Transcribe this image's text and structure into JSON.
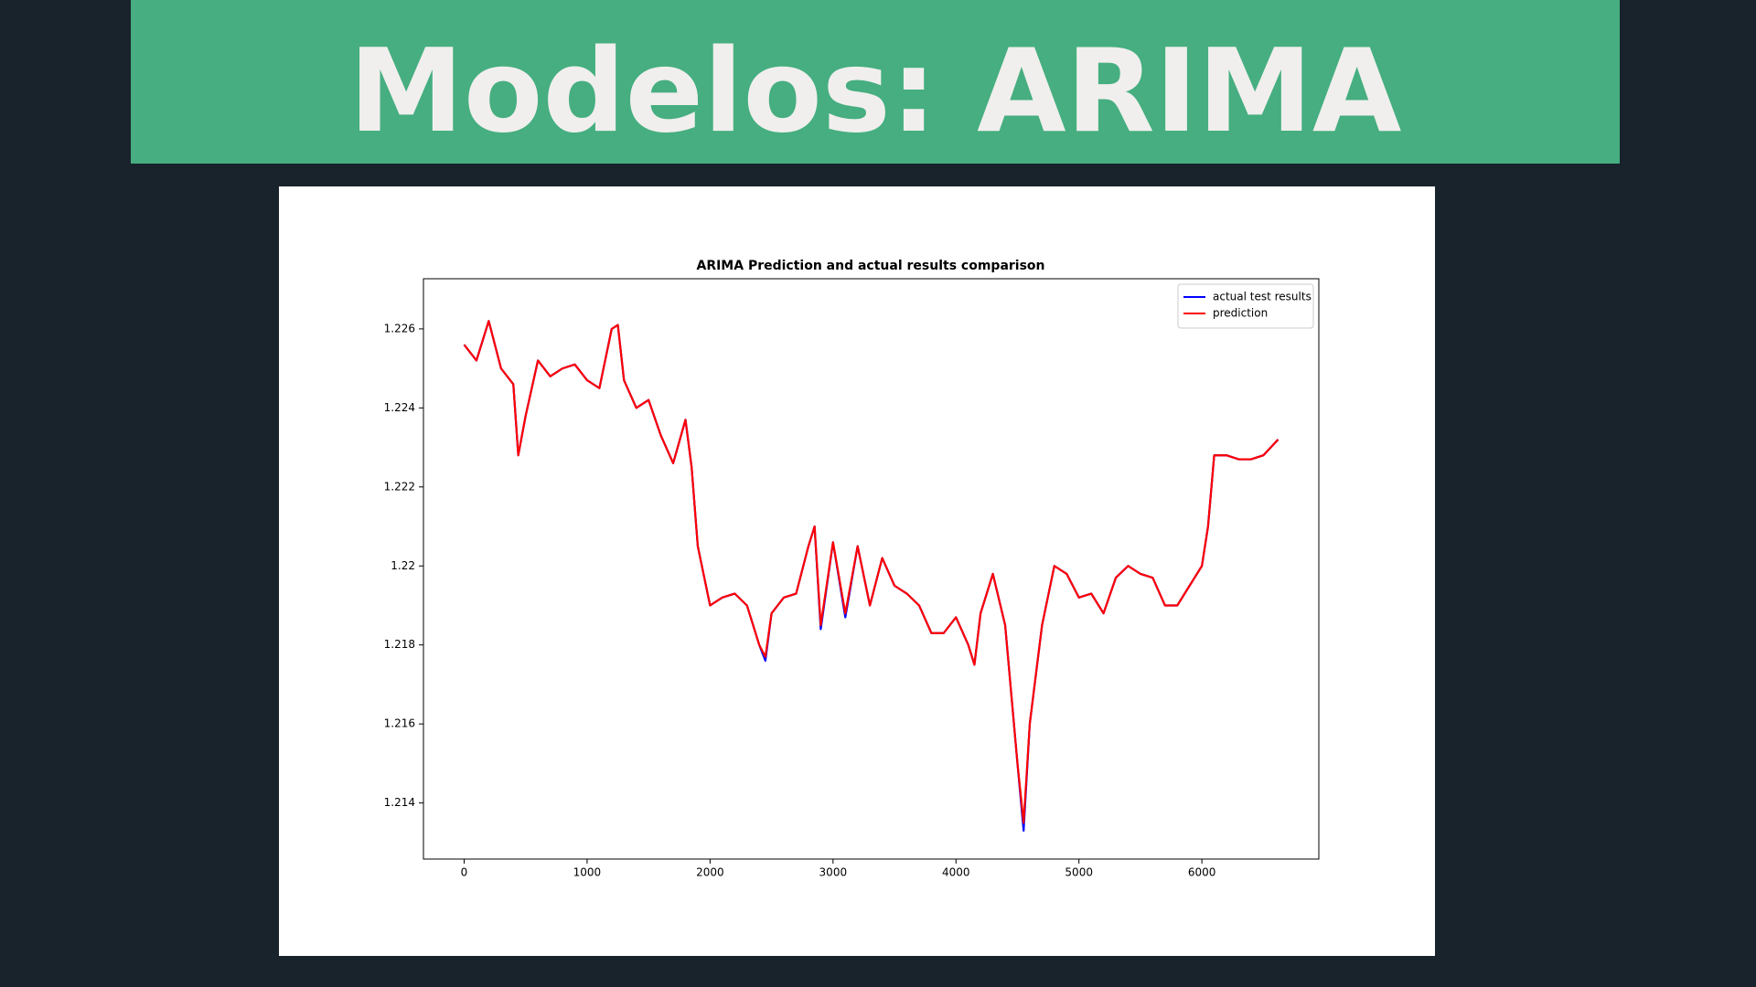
{
  "slide": {
    "title": "Modelos: ARIMA"
  },
  "chart_data": {
    "type": "line",
    "title": "ARIMA Prediction and actual results comparison",
    "x": [
      0,
      100,
      200,
      300,
      400,
      440,
      500,
      600,
      700,
      800,
      900,
      1000,
      1100,
      1200,
      1250,
      1300,
      1400,
      1500,
      1600,
      1700,
      1800,
      1850,
      1900,
      2000,
      2100,
      2200,
      2300,
      2400,
      2450,
      2500,
      2600,
      2700,
      2800,
      2850,
      2900,
      3000,
      3100,
      3200,
      3300,
      3400,
      3500,
      3600,
      3700,
      3800,
      3900,
      4000,
      4100,
      4150,
      4200,
      4300,
      4400,
      4500,
      4550,
      4600,
      4700,
      4800,
      4900,
      5000,
      5100,
      5200,
      5300,
      5400,
      5500,
      5600,
      5700,
      5800,
      5900,
      6000,
      6050,
      6100,
      6200,
      6300,
      6400,
      6500,
      6620
    ],
    "series": [
      {
        "name": "actual test results",
        "color": "#0000ff",
        "values": [
          1.2256,
          1.2252,
          1.2262,
          1.225,
          1.2246,
          1.2228,
          1.2238,
          1.2252,
          1.2248,
          1.225,
          1.2251,
          1.2247,
          1.2245,
          1.226,
          1.2261,
          1.2247,
          1.224,
          1.2242,
          1.2233,
          1.2226,
          1.2237,
          1.2225,
          1.2205,
          1.219,
          1.2192,
          1.2193,
          1.219,
          1.218,
          1.2176,
          1.2188,
          1.2192,
          1.2193,
          1.2205,
          1.221,
          1.2184,
          1.2206,
          1.2187,
          1.2205,
          1.219,
          1.2202,
          1.2195,
          1.2193,
          1.219,
          1.2183,
          1.2183,
          1.2187,
          1.218,
          1.2175,
          1.2188,
          1.2198,
          1.2185,
          1.215,
          1.2133,
          1.216,
          1.2185,
          1.22,
          1.2198,
          1.2192,
          1.2193,
          1.2188,
          1.2197,
          1.22,
          1.2198,
          1.2197,
          1.219,
          1.219,
          1.2195,
          1.22,
          1.221,
          1.2228,
          1.2228,
          1.2227,
          1.2227,
          1.2228,
          1.2232
        ]
      },
      {
        "name": "prediction",
        "color": "#ff0000",
        "values": [
          1.2256,
          1.2252,
          1.2262,
          1.225,
          1.2246,
          1.2228,
          1.2238,
          1.2252,
          1.2248,
          1.225,
          1.2251,
          1.2247,
          1.2245,
          1.226,
          1.2261,
          1.2247,
          1.224,
          1.2242,
          1.2233,
          1.2226,
          1.2237,
          1.2225,
          1.2205,
          1.219,
          1.2192,
          1.2193,
          1.219,
          1.218,
          1.2177,
          1.2188,
          1.2192,
          1.2193,
          1.2205,
          1.221,
          1.2185,
          1.2206,
          1.2188,
          1.2205,
          1.219,
          1.2202,
          1.2195,
          1.2193,
          1.219,
          1.2183,
          1.2183,
          1.2187,
          1.218,
          1.2175,
          1.2188,
          1.2198,
          1.2185,
          1.215,
          1.2135,
          1.216,
          1.2185,
          1.22,
          1.2198,
          1.2192,
          1.2193,
          1.2188,
          1.2197,
          1.22,
          1.2198,
          1.2197,
          1.219,
          1.219,
          1.2195,
          1.22,
          1.221,
          1.2228,
          1.2228,
          1.2227,
          1.2227,
          1.2228,
          1.2232
        ]
      }
    ],
    "xlim": [
      -331,
      6951
    ],
    "ylim": [
      1.21258,
      1.22727
    ],
    "xticks": [
      0,
      1000,
      2000,
      3000,
      4000,
      5000,
      6000
    ],
    "yticks": [
      1.214,
      1.216,
      1.218,
      1.22,
      1.222,
      1.224,
      1.226
    ],
    "legend": "upper right",
    "grid": false
  }
}
